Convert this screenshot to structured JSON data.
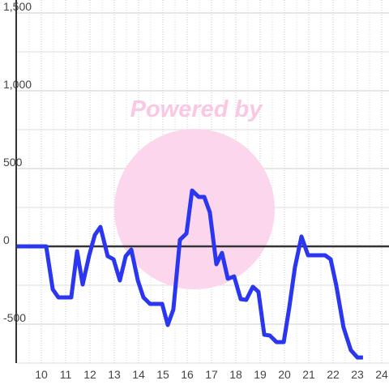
{
  "chart_data": {
    "type": "line",
    "annotation": "Powered by",
    "xlim": [
      9,
      24.3
    ],
    "ylim": [
      -750,
      1500
    ],
    "xticks": [
      10,
      11,
      12,
      13,
      14,
      15,
      16,
      17,
      18,
      19,
      20,
      21,
      22,
      23,
      24
    ],
    "yticks": [
      {
        "value": -500,
        "label": "-500"
      },
      0,
      500,
      {
        "value": 1000,
        "label": "1,000"
      },
      {
        "value": 1500,
        "label": "1,500"
      }
    ],
    "grid": true,
    "series": [
      {
        "color": "#2a36f0",
        "x": [
          9,
          10.2,
          10.47,
          10.7,
          11.23,
          11.47,
          11.7,
          11.97,
          12.2,
          12.43,
          12.73,
          12.97,
          13.23,
          13.47,
          13.7,
          13.97,
          14.2,
          14.47,
          14.97,
          15.2,
          15.43,
          15.7,
          15.97,
          16.2,
          16.47,
          16.7,
          16.93,
          17.2,
          17.43,
          17.67,
          17.93,
          18.2,
          18.43,
          18.7,
          18.93,
          19.17,
          19.4,
          19.67,
          19.97,
          20.2,
          20.43,
          20.7,
          20.97,
          21.67,
          21.9,
          22.13,
          22.43,
          22.73,
          23,
          23.23
        ],
        "values": [
          0,
          0,
          -276,
          -328,
          -328,
          -31,
          -245,
          -57,
          73,
          125,
          -63,
          -83,
          -219,
          -63,
          -21,
          -219,
          -328,
          -370,
          -370,
          -505,
          -406,
          42,
          83,
          359,
          318,
          318,
          219,
          -115,
          -42,
          -208,
          -193,
          -339,
          -344,
          -260,
          -292,
          -568,
          -573,
          -615,
          -615,
          -391,
          -135,
          63,
          -57,
          -57,
          -83,
          -250,
          -521,
          -667,
          -714,
          -714
        ]
      }
    ]
  }
}
